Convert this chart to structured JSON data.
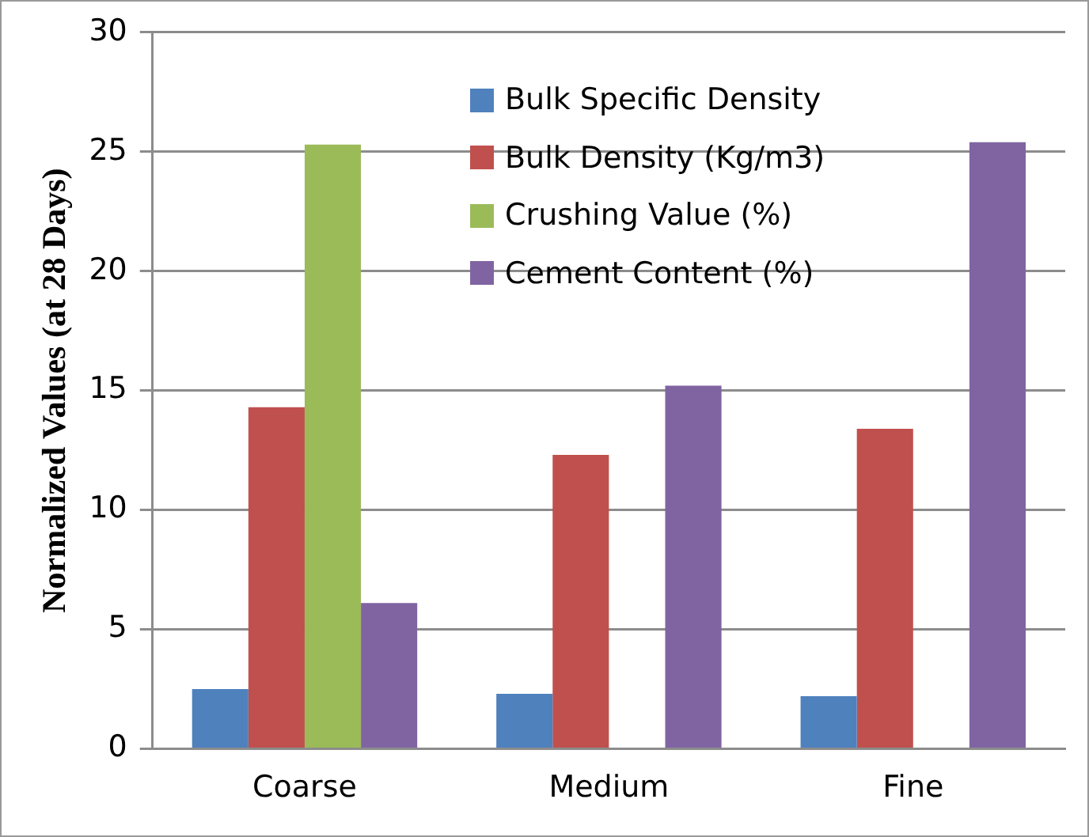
{
  "chart_data": {
    "type": "bar",
    "ylabel": "Normalized Values (at 28 Days)",
    "categories": [
      "Coarse",
      "Medium",
      "Fine"
    ],
    "series": [
      {
        "name": "Bulk Specific Density",
        "color": "#4f81bd",
        "values": [
          2.5,
          2.3,
          2.2
        ]
      },
      {
        "name": "Bulk Density (Kg/m3)",
        "color": "#c0504d",
        "values": [
          14.3,
          12.3,
          13.4
        ]
      },
      {
        "name": "Crushing Value (%)",
        "color": "#9bbb59",
        "values": [
          25.3,
          null,
          null
        ]
      },
      {
        "name": "Cement Content (%)",
        "color": "#8064a2",
        "values": [
          6.1,
          15.2,
          25.4
        ]
      }
    ],
    "ylim": [
      0,
      30
    ],
    "yticks": [
      0,
      5,
      10,
      15,
      20,
      25,
      30
    ],
    "grid": "y",
    "legend": "top right"
  }
}
